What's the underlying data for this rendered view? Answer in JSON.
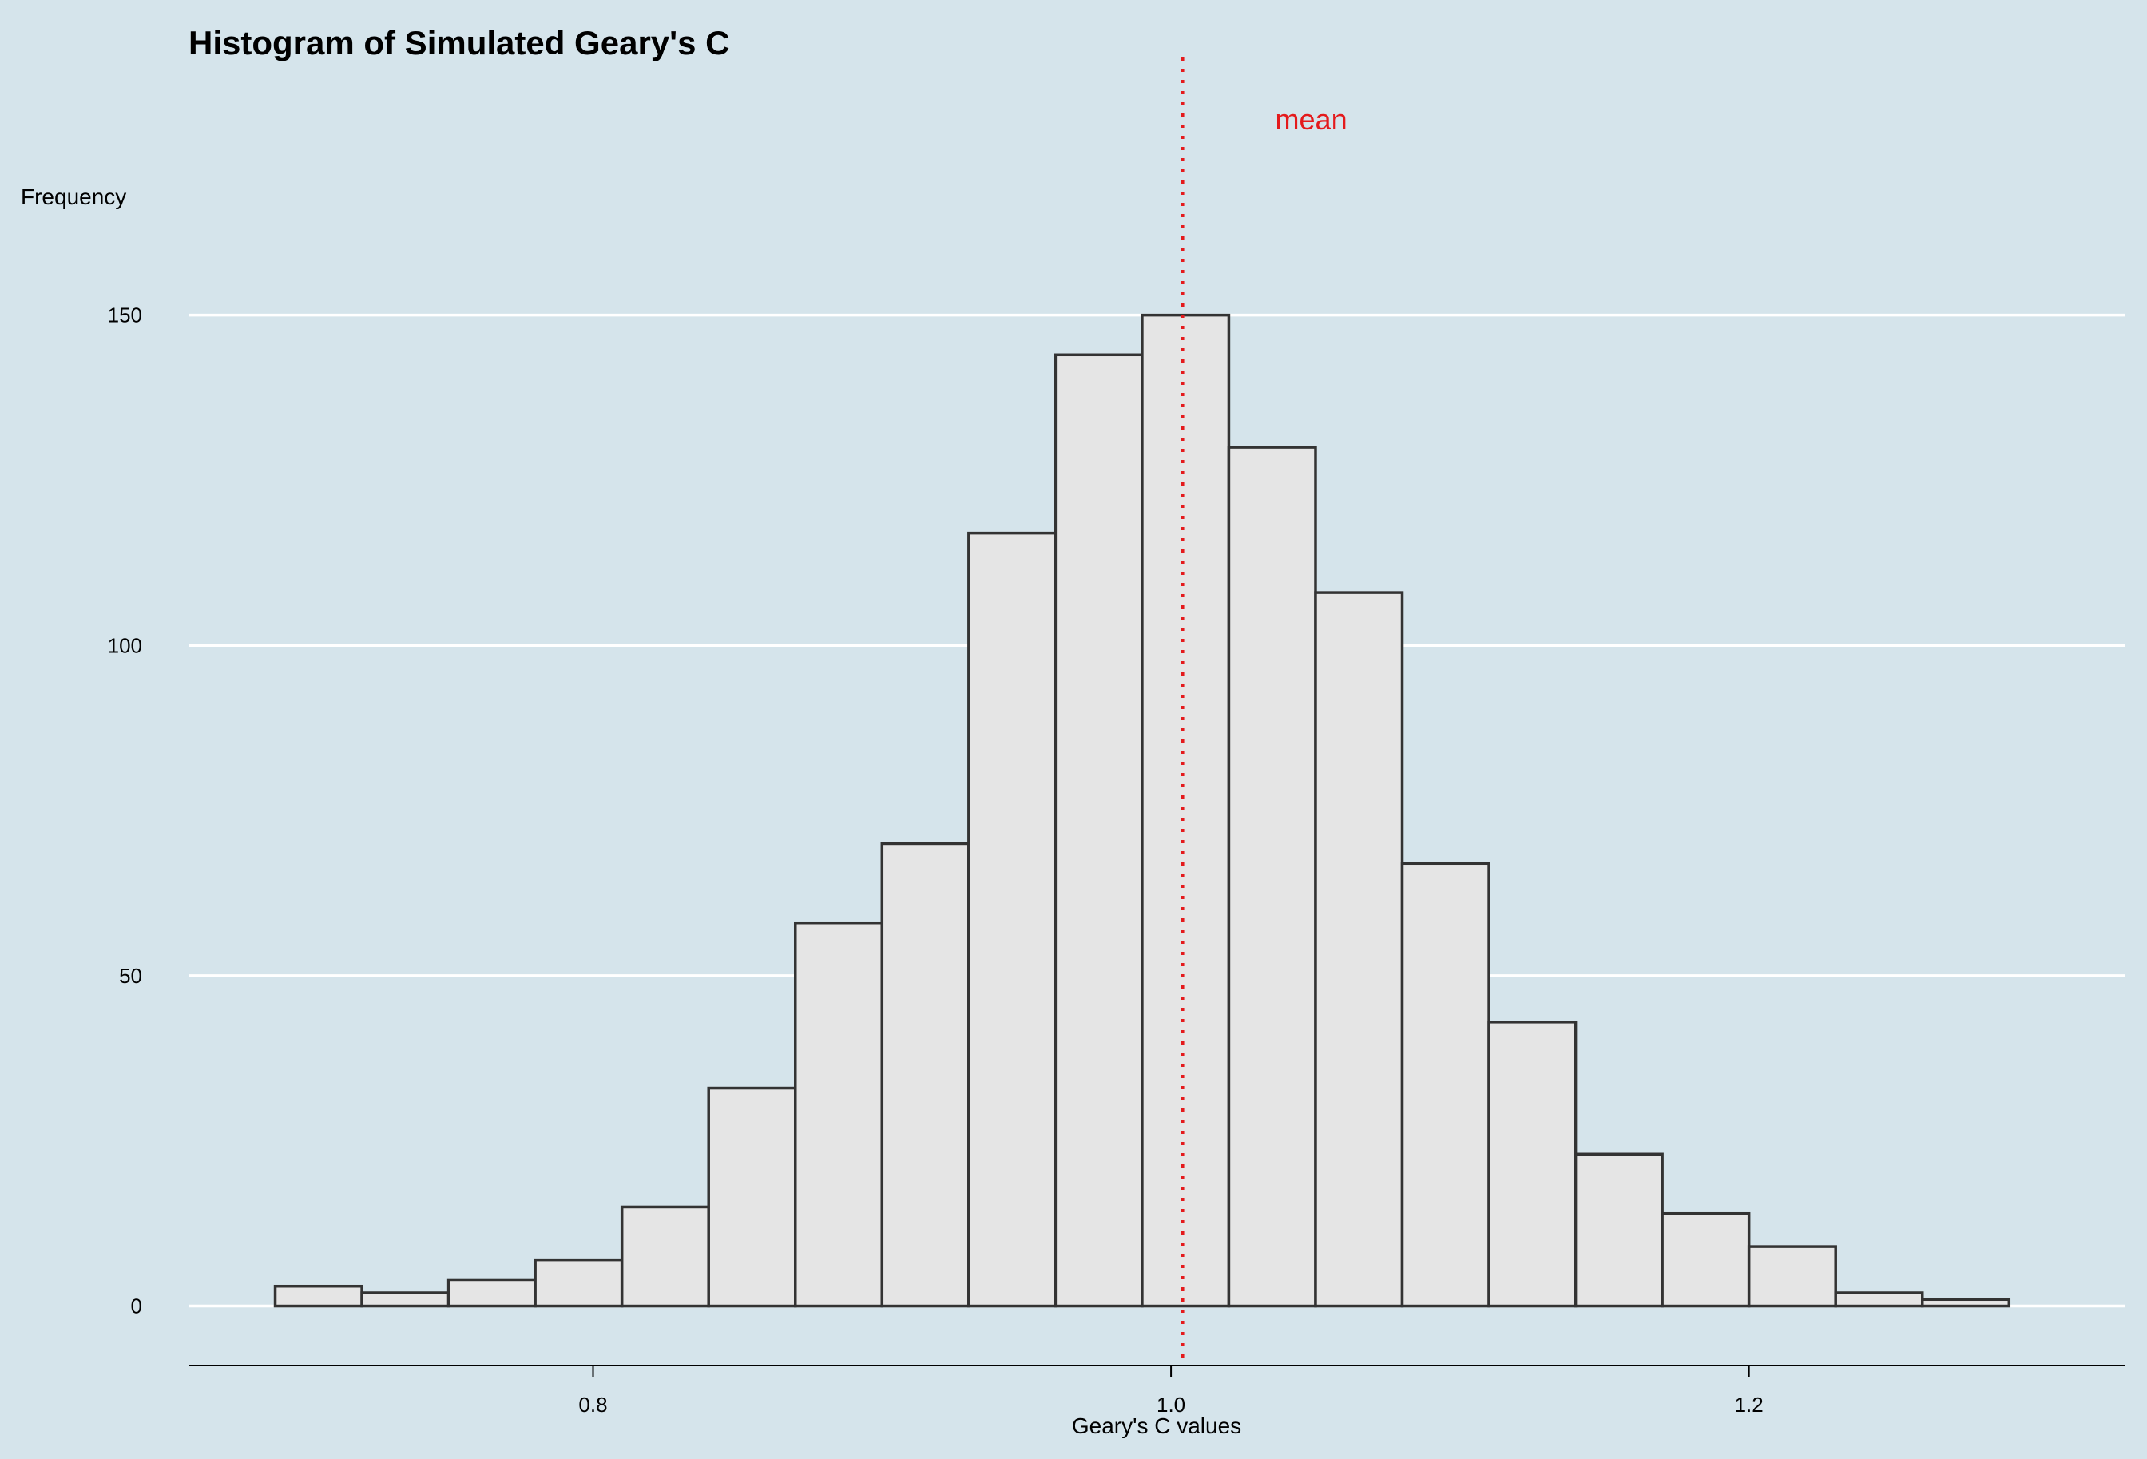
{
  "chart_data": {
    "type": "bar",
    "title": "Histogram of Simulated Geary's C",
    "xlabel": "Geary's C values",
    "ylabel": "Frequency",
    "bin_edges": [
      0.69,
      0.72,
      0.75,
      0.78,
      0.81,
      0.84,
      0.87,
      0.9,
      0.93,
      0.96,
      0.99,
      1.02,
      1.05,
      1.08,
      1.11,
      1.14,
      1.17,
      1.2,
      1.23,
      1.26,
      1.29
    ],
    "values": [
      3,
      2,
      4,
      7,
      15,
      33,
      58,
      70,
      117,
      144,
      150,
      130,
      108,
      67,
      43,
      23,
      14,
      9,
      2,
      1
    ],
    "xlim": [
      0.66,
      1.33
    ],
    "ylim": [
      -9,
      189
    ],
    "x_ticks": [
      {
        "value": 0.8,
        "label": "0.8"
      },
      {
        "value": 1.0,
        "label": "1.0"
      },
      {
        "value": 1.2,
        "label": "1.2"
      }
    ],
    "y_ticks": [
      {
        "value": 0,
        "label": "0"
      },
      {
        "value": 50,
        "label": "50"
      },
      {
        "value": 100,
        "label": "100"
      },
      {
        "value": 150,
        "label": "150"
      }
    ],
    "grid": "horizontal",
    "mean_line": {
      "value": 1.004,
      "label": "mean",
      "color": "#e41a1c",
      "style": "dotted"
    },
    "colors": {
      "background": "#d5e4eb",
      "bar_fill": "#e5e5e5",
      "bar_stroke": "#333333",
      "grid": "#ffffff",
      "axis": "#000000"
    }
  }
}
